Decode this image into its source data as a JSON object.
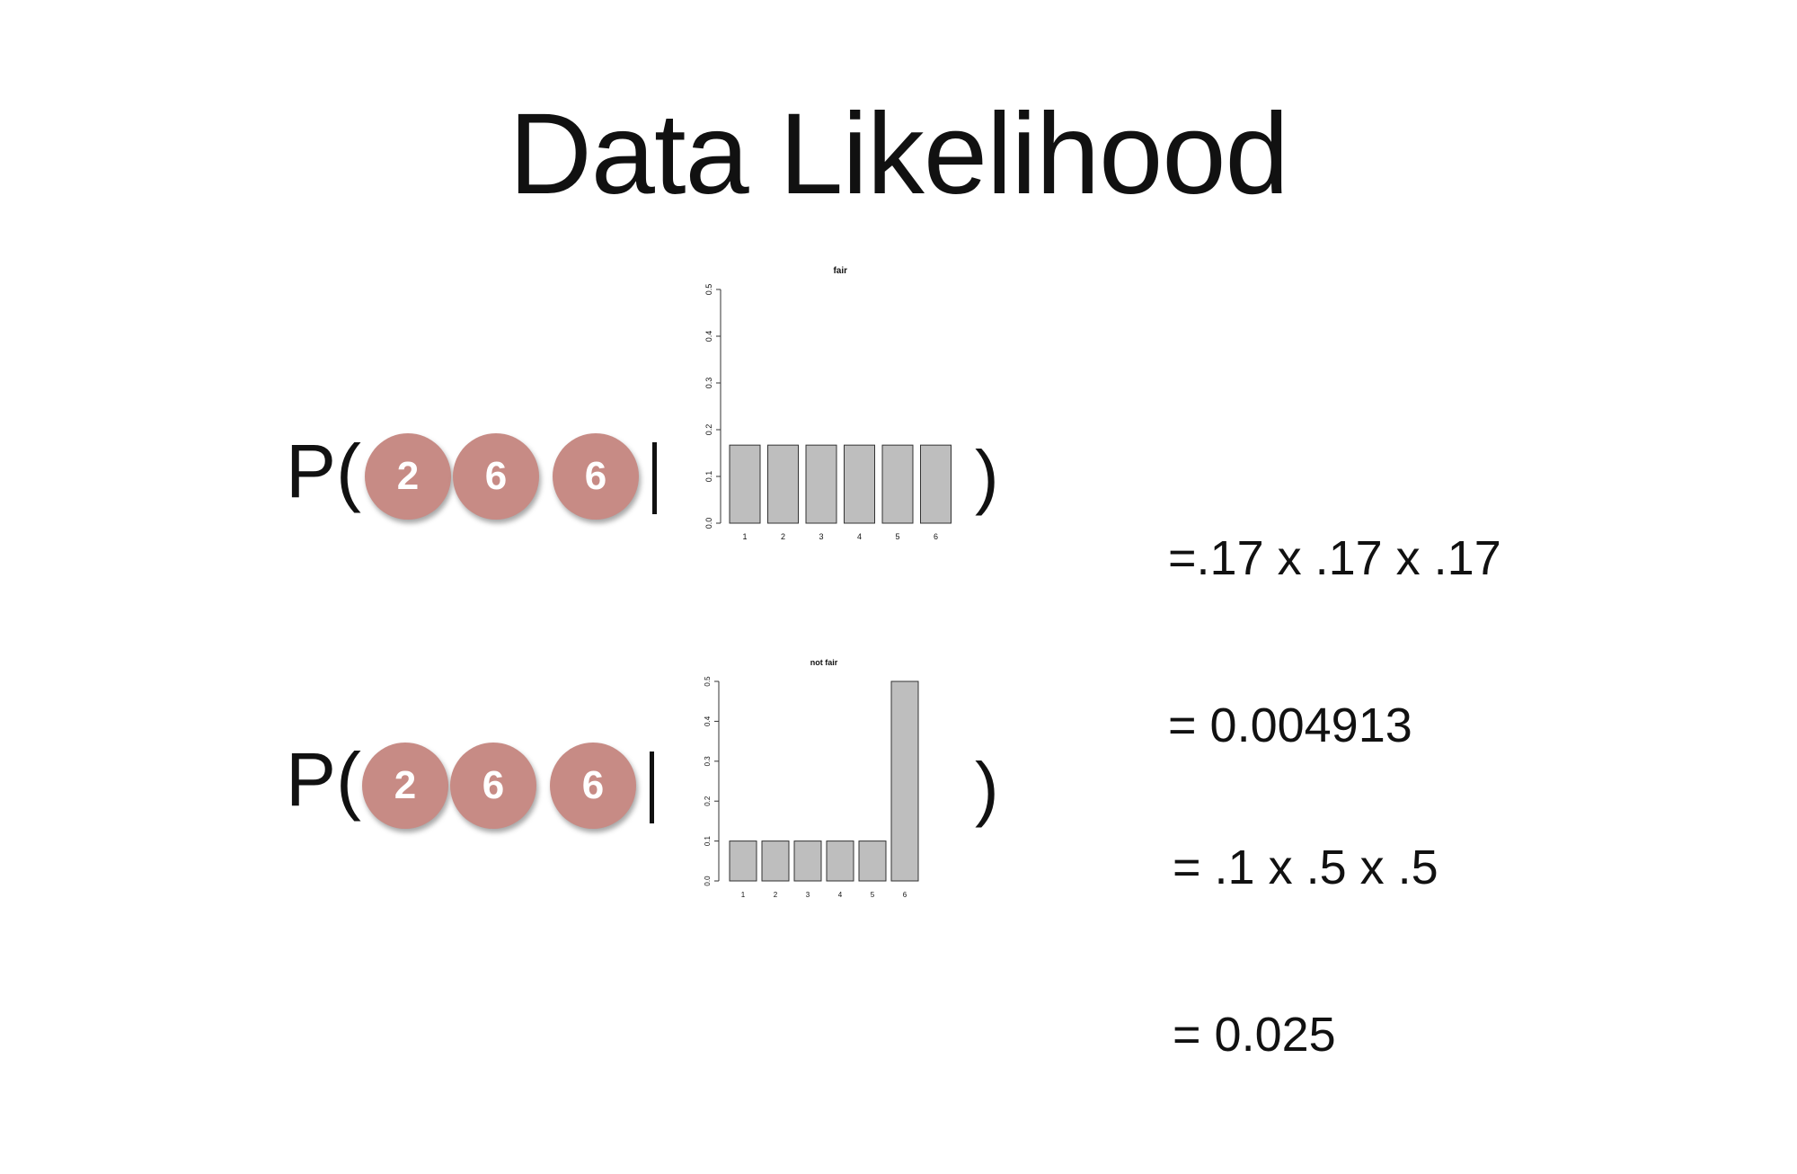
{
  "title": "Data Likelihood",
  "rows": [
    {
      "prefix": "P(",
      "dice": [
        "2",
        "6",
        "6"
      ],
      "suffix": ")",
      "formula_lines": [
        "=.17 x .17 x .17",
        "= 0.004913"
      ]
    },
    {
      "prefix": "P(",
      "dice": [
        "2",
        "6",
        "6"
      ],
      "suffix": ")",
      "formula_lines": [
        "= .1 x .5 x .5",
        "= 0.025"
      ]
    }
  ],
  "colors": {
    "die_fill": "#c78b85",
    "bar_fill": "#bebebe",
    "bar_stroke": "#333333"
  },
  "chart_data": [
    {
      "type": "bar",
      "title": "fair",
      "categories": [
        "1",
        "2",
        "3",
        "4",
        "5",
        "6"
      ],
      "values": [
        0.167,
        0.167,
        0.167,
        0.167,
        0.167,
        0.167
      ],
      "ylim": [
        0,
        0.5
      ],
      "yticks": [
        "0.0",
        "0.1",
        "0.2",
        "0.3",
        "0.4",
        "0.5"
      ],
      "grid": false
    },
    {
      "type": "bar",
      "title": "not fair",
      "categories": [
        "1",
        "2",
        "3",
        "4",
        "5",
        "6"
      ],
      "values": [
        0.1,
        0.1,
        0.1,
        0.1,
        0.1,
        0.5
      ],
      "ylim": [
        0,
        0.5
      ],
      "yticks": [
        "0.0",
        "0.1",
        "0.2",
        "0.3",
        "0.4",
        "0.5"
      ],
      "grid": false
    }
  ]
}
